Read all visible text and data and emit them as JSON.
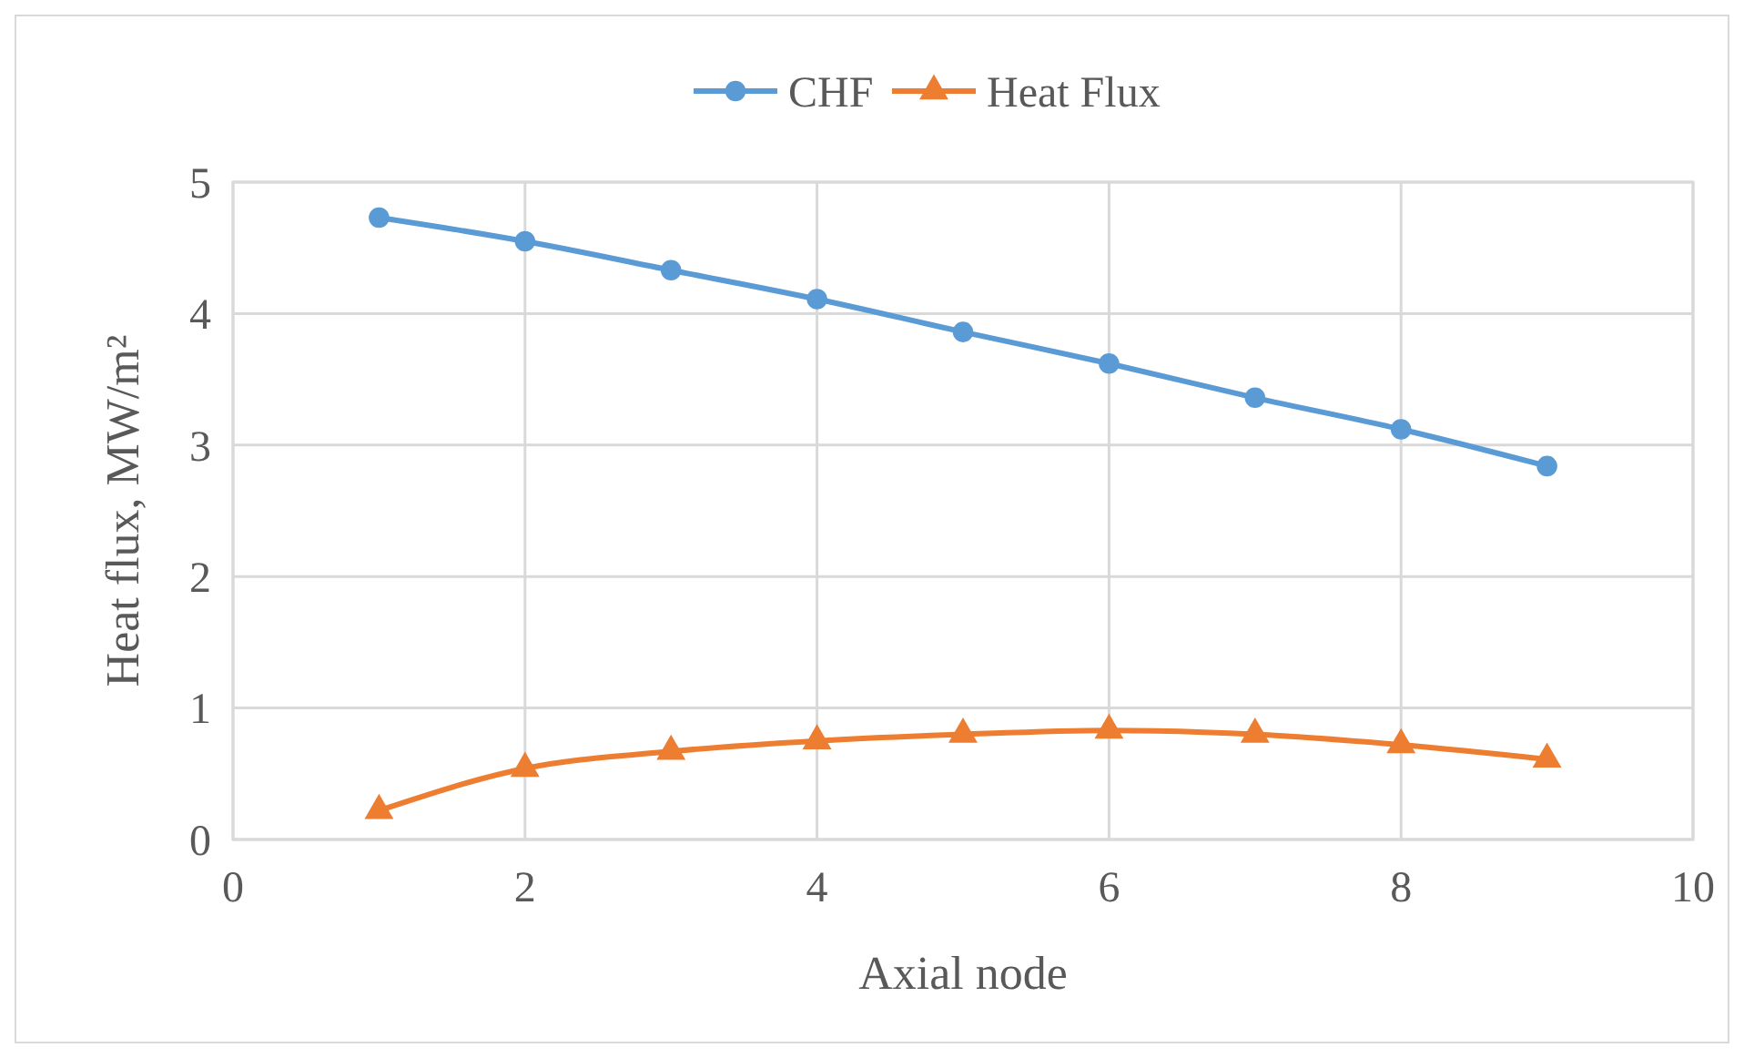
{
  "chart_data": {
    "type": "line",
    "xlabel": "Axial node",
    "ylabel": "Heat flux, MW/m²",
    "x": [
      1,
      2,
      3,
      4,
      5,
      6,
      7,
      8,
      9
    ],
    "series": [
      {
        "name": "CHF",
        "color": "#5b9bd5",
        "marker": "circle",
        "values": [
          4.73,
          4.55,
          4.33,
          4.11,
          3.86,
          3.62,
          3.36,
          3.12,
          2.84
        ]
      },
      {
        "name": "Heat Flux",
        "color": "#ed7d31",
        "marker": "triangle",
        "values": [
          0.22,
          0.54,
          0.67,
          0.75,
          0.8,
          0.83,
          0.8,
          0.72,
          0.61
        ]
      }
    ],
    "xlim": [
      0,
      10
    ],
    "xticks": [
      0,
      2,
      4,
      6,
      8,
      10
    ],
    "ylim": [
      0,
      5
    ],
    "yticks": [
      0,
      1,
      2,
      3,
      4,
      5
    ],
    "grid": true,
    "legend": "top"
  }
}
